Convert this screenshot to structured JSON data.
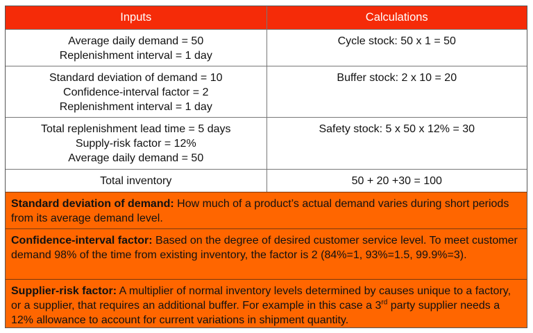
{
  "header": {
    "inputs": "Inputs",
    "calculations": "Calculations"
  },
  "rows": [
    {
      "inputs": [
        "Average daily demand  = 50",
        "Replenishment  interval = 1 day"
      ],
      "calc": "Cycle stock: 50 x 1 = 50"
    },
    {
      "inputs": [
        "Standard deviation of demand  = 10",
        "Confidence-interval factor = 2",
        "Replenishment  interval = 1 day"
      ],
      "calc": "Buffer stock: 2 x 10 = 20"
    },
    {
      "inputs": [
        "Total replenishment  lead time = 5 days",
        "Supply-risk  factor = 12%",
        "Average daily demand  = 50"
      ],
      "calc": "Safety stock: 5 x 50 x 12% = 30"
    },
    {
      "inputs": [
        "Total inventory"
      ],
      "calc": "50 + 20 +30 = 100"
    }
  ],
  "definitions": [
    {
      "term": "Standard deviation of demand:",
      "text": " How much  of a product’s actual demand  varies during short periods from its average demand  level."
    },
    {
      "term": "Confidence-interval factor:",
      "text": " Based on the degree of desired customer service level. To meet customer demand  98% of the time from existing inventory, the factor is 2 (84%=1, 93%=1.5, 99.9%=3)."
    },
    {
      "term": "Supplier-risk  factor:",
      "text": " A multiplier  of normal  inventory levels determined  by causes unique to a factory, or a supplier,  that requires an additional buffer. For example  in this case a 3",
      "sup": "rd",
      "text2": " party supplier  needs a 12% allowance  to account for current variations in shipment  quantity."
    }
  ],
  "colors": {
    "header": "#F52B08",
    "definitions": "#FF6600"
  }
}
